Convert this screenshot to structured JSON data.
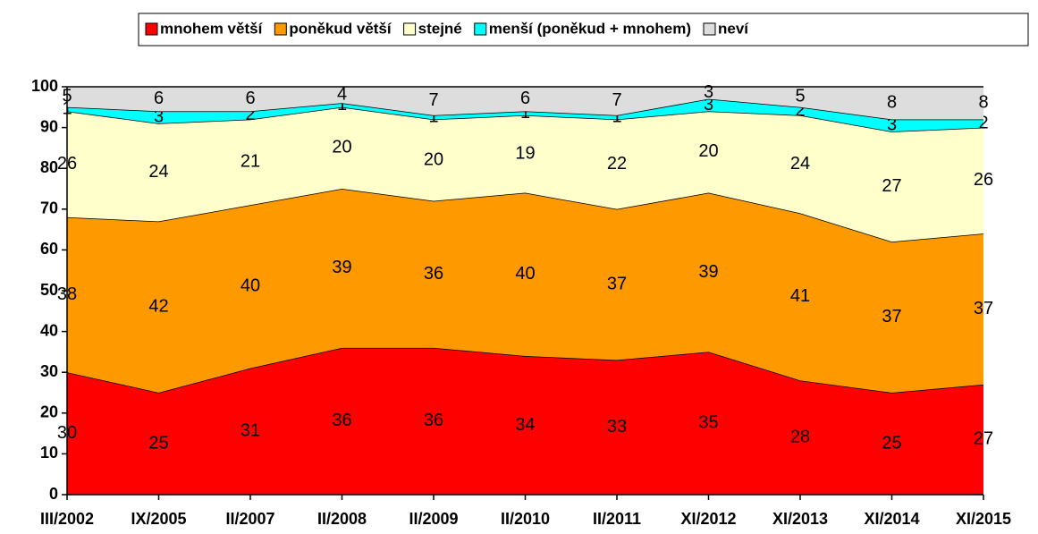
{
  "chart_data": {
    "type": "stacked_area",
    "categories": [
      "III/2002",
      "IX/2005",
      "II/2007",
      "II/2008",
      "II/2009",
      "II/2010",
      "II/2011",
      "XI/2012",
      "XI/2013",
      "XI/2014",
      "XI/2015"
    ],
    "series": [
      {
        "name": "mnohem větší",
        "color": "#ff0000",
        "values": [
          30,
          25,
          31,
          36,
          36,
          34,
          33,
          35,
          28,
          25,
          27
        ]
      },
      {
        "name": "poněkud větší",
        "color": "#ff9900",
        "values": [
          38,
          42,
          40,
          39,
          36,
          40,
          37,
          39,
          41,
          37,
          37
        ]
      },
      {
        "name": "stejné",
        "color": "#ffffcc",
        "values": [
          26,
          24,
          21,
          20,
          20,
          19,
          22,
          20,
          24,
          27,
          26
        ]
      },
      {
        "name": "menší (poněkud + mnohem)",
        "color": "#00ffff",
        "values": [
          1,
          3,
          2,
          1,
          1,
          1,
          1,
          3,
          2,
          3,
          2
        ]
      },
      {
        "name": "neví",
        "color": "#dddddd",
        "values": [
          5,
          6,
          6,
          4,
          7,
          6,
          7,
          3,
          5,
          8,
          8
        ]
      }
    ],
    "ylim": [
      0,
      100
    ],
    "yticks": [
      0,
      10,
      20,
      30,
      40,
      50,
      60,
      70,
      80,
      90,
      100
    ],
    "legend": "top"
  }
}
